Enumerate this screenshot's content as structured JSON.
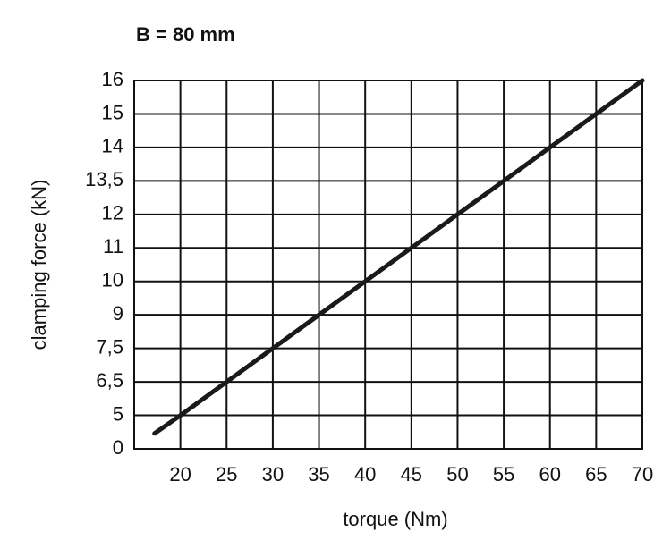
{
  "chart_data": {
    "type": "line",
    "title": "B = 80 mm",
    "x_label": "torque (Nm)",
    "y_label": "clamping force (kN)",
    "x": [
      17.2,
      20,
      25,
      30,
      35,
      40,
      45,
      50,
      55,
      60,
      65,
      70
    ],
    "values": [
      2.3,
      5,
      6.5,
      7.5,
      9,
      10,
      11,
      12,
      13.5,
      14,
      15,
      16
    ],
    "color": "#1a1a1a",
    "xlim": [
      15,
      70
    ],
    "xticks": [
      20,
      25,
      30,
      35,
      40,
      45,
      50,
      55,
      60,
      65,
      70
    ],
    "ylim": [
      0,
      16
    ],
    "yticks": [
      0,
      5,
      {
        "value": 6.5,
        "label": "6,5"
      },
      {
        "value": 7.5,
        "label": "7,5"
      },
      9,
      10,
      11,
      12,
      {
        "value": 13.5,
        "label": "13,5"
      },
      14,
      15,
      16
    ],
    "grid": true
  }
}
